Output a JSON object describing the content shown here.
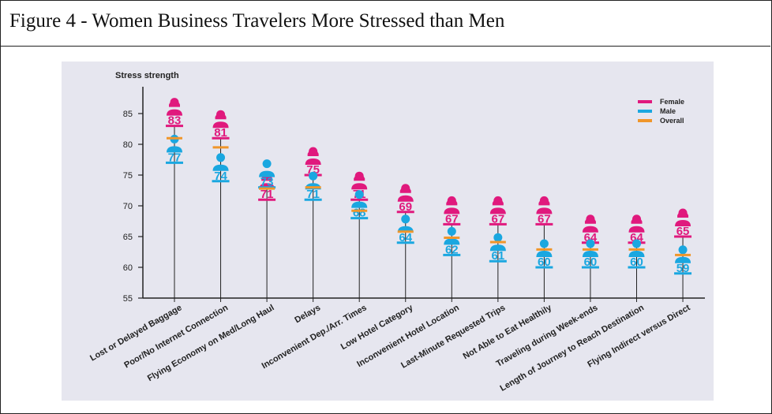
{
  "figure": {
    "caption": "Figure 4 - Women Business Travelers More Stressed than Men"
  },
  "colors": {
    "female": "#e0197d",
    "male": "#1aa7e0",
    "overall": "#f0962a",
    "axis": "#222222"
  },
  "chart_data": {
    "type": "scatter",
    "ylabel": "Stress strength",
    "ylim": [
      55,
      87
    ],
    "yticks": [
      55,
      60,
      65,
      70,
      75,
      80,
      85
    ],
    "legend_position": "top-right",
    "categories": [
      "Lost or Delayed Baggage",
      "Poor/No Internet Connection",
      "Flying Economy on Med/Long Haul",
      "Delays",
      "Inconvenient Dep./Arr. Times",
      "Low Hotel Category",
      "Inconvenient Hotel Location",
      "Last-Minute Requested Trips",
      "Not Able to Eat Healthily",
      "Traveling during Week-ends",
      "Length of Journey to Reach Destination",
      "Flying Indirect versus Direct"
    ],
    "series": [
      {
        "name": "Female",
        "values": [
          83,
          81,
          71,
          75,
          71,
          69,
          67,
          67,
          67,
          64,
          64,
          65
        ]
      },
      {
        "name": "Male",
        "values": [
          77,
          74,
          73,
          71,
          68,
          64,
          62,
          61,
          60,
          60,
          60,
          59
        ]
      },
      {
        "name": "Overall",
        "values": [
          81,
          79.5,
          72.8,
          73,
          69.2,
          65.8,
          64.8,
          64.1,
          62.9,
          62.9,
          62.9,
          62
        ]
      }
    ]
  }
}
